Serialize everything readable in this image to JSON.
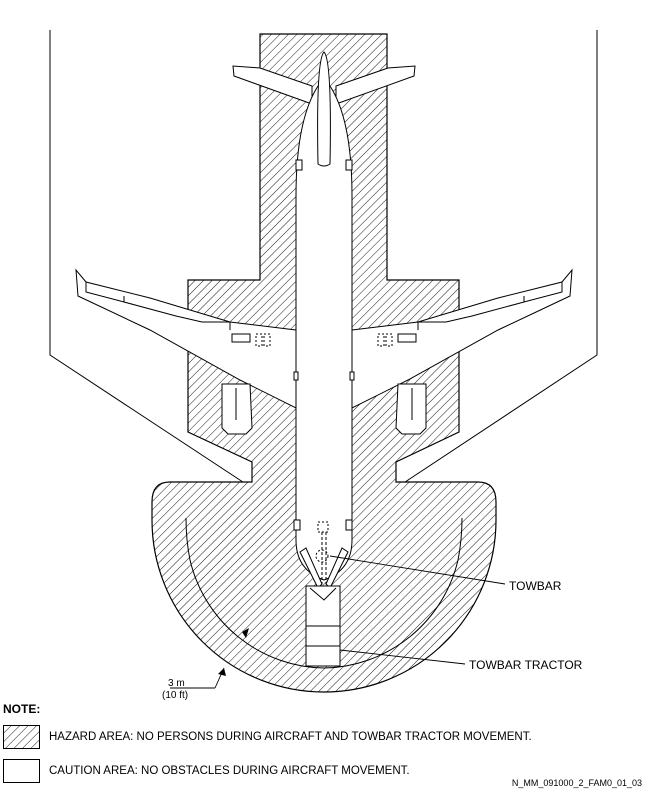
{
  "labels": {
    "towbar": "TOWBAR",
    "towbar_tractor": "TOWBAR TRACTOR",
    "dimension_metric": "3 m",
    "dimension_imperial": "(10 ft)"
  },
  "note": {
    "title": "NOTE:",
    "hazard_text": "HAZARD AREA: NO PERSONS DURING AIRCRAFT AND TOWBAR TRACTOR MOVEMENT.",
    "caution_text": "CAUTION AREA: NO OBSTACLES DURING AIRCRAFT MOVEMENT."
  },
  "reference_code": "N_MM_091000_2_FAM0_01_03",
  "colors": {
    "line": "#000000",
    "background": "#ffffff",
    "hatch": "#000000"
  }
}
